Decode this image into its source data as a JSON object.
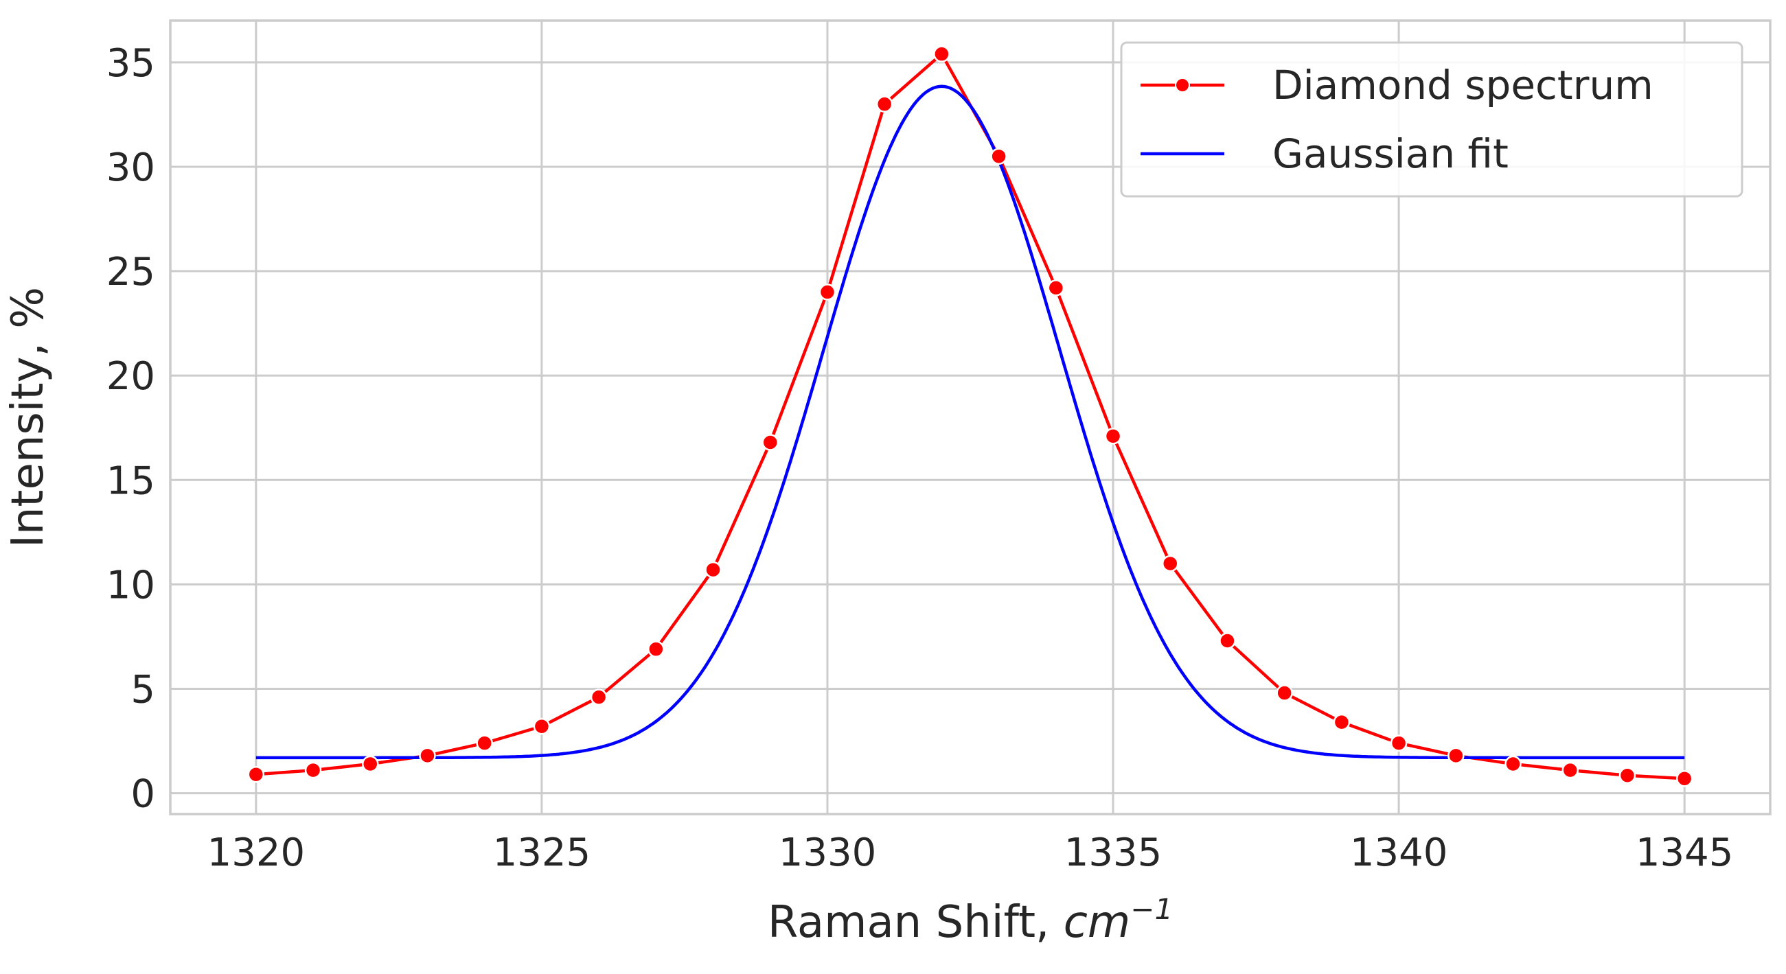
{
  "chart_data": {
    "type": "line",
    "title": "",
    "xlabel": "Raman Shift, ",
    "xlabel_unit": "cm",
    "xlabel_exponent": "−1",
    "ylabel": "Intensity, %",
    "xlim": [
      1318.5,
      1346.5
    ],
    "ylim": [
      -1.0,
      37.0
    ],
    "x_ticks": [
      1320,
      1325,
      1330,
      1335,
      1340,
      1345
    ],
    "x_tick_labels": [
      "1320",
      "1325",
      "1330",
      "1335",
      "1340",
      "1345"
    ],
    "y_ticks": [
      0,
      5,
      10,
      15,
      20,
      25,
      30,
      35
    ],
    "y_tick_labels": [
      "0",
      "5",
      "10",
      "15",
      "20",
      "25",
      "30",
      "35"
    ],
    "grid": true,
    "legend_position": "top-right",
    "series": [
      {
        "name": "Diamond spectrum",
        "color": "#ff0000",
        "marker": "circle",
        "x": [
          1320,
          1321,
          1322,
          1323,
          1324,
          1325,
          1326,
          1327,
          1328,
          1329,
          1330,
          1331,
          1332,
          1333,
          1334,
          1335,
          1336,
          1337,
          1338,
          1339,
          1340,
          1341,
          1342,
          1343,
          1344,
          1345
        ],
        "y": [
          0.9,
          1.1,
          1.4,
          1.8,
          2.4,
          3.2,
          4.6,
          6.9,
          10.7,
          16.8,
          24.0,
          33.0,
          35.4,
          30.5,
          24.2,
          17.1,
          11.0,
          7.3,
          4.8,
          3.4,
          2.4,
          1.8,
          1.4,
          1.1,
          0.85,
          0.7
        ]
      },
      {
        "name": "Gaussian fit",
        "color": "#0000ff",
        "marker": "none",
        "x_range": [
          1320,
          1345
        ],
        "baseline": 1.7,
        "amplitude": 32.15,
        "center": 1332.0,
        "sigma": 2.07
      }
    ]
  }
}
